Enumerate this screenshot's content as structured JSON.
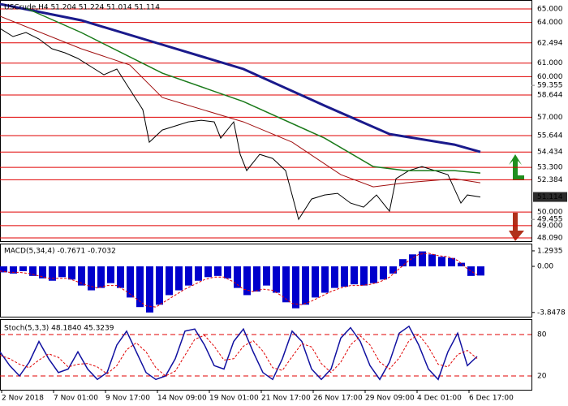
{
  "chart_data": [
    {
      "type": "line",
      "title": "USCrude,H4  51.204 51.224 51.014 51.114",
      "xlim": [
        0,
        163.75
      ],
      "ylim": [
        47.85,
        65.66
      ],
      "yticks": [
        {
          "value": 65,
          "label": "65.000"
        },
        {
          "value": 64,
          "label": "64.000"
        },
        {
          "value": 62.494,
          "label": "62.494"
        },
        {
          "value": 61,
          "label": "61.000"
        },
        {
          "value": 60,
          "label": "60.000"
        },
        {
          "value": 58.644,
          "label": "58.644"
        },
        {
          "value": 57,
          "label": "57.000"
        },
        {
          "value": 55.644,
          "label": "55.644"
        },
        {
          "value": 54.434,
          "label": "54.434"
        },
        {
          "value": 53.3,
          "label": "53.300"
        },
        {
          "value": 52.384,
          "label": "52.384"
        },
        {
          "value": 50,
          "label": "50.000"
        },
        {
          "value": 49,
          "label": "49.000"
        },
        {
          "value": 48.09,
          "label": "48.090"
        }
      ],
      "yticks_minor": [
        59.355,
        49.455
      ],
      "last": {
        "value": 51.114,
        "label": "51.114"
      },
      "level_color": "#e00000",
      "series": [
        {
          "color": "#000000",
          "width": 1,
          "x": [
            0,
            4,
            8,
            12,
            16,
            20,
            24,
            28,
            32,
            36,
            40,
            44,
            46,
            50,
            54,
            58,
            62,
            66,
            68,
            72,
            74,
            76,
            80,
            84,
            88,
            90,
            92,
            96,
            100,
            104,
            108,
            112,
            116,
            120,
            122,
            126,
            130,
            134,
            138,
            142,
            144,
            148
          ],
          "values": [
            63.56,
            62.96,
            63.26,
            62.78,
            62.06,
            61.76,
            61.34,
            60.74,
            60.14,
            60.56,
            59.06,
            57.56,
            55.16,
            56.06,
            56.36,
            56.66,
            56.78,
            56.66,
            55.46,
            56.66,
            54.26,
            53.06,
            54.26,
            53.96,
            53.06,
            51.26,
            49.46,
            50.96,
            51.26,
            51.38,
            50.66,
            50.36,
            51.26,
            50.06,
            52.46,
            53.06,
            53.36,
            53.06,
            52.76,
            50.66,
            51.26,
            51.114
          ]
        },
        {
          "color": "#1a1a8c",
          "width": 3,
          "x": [
            0,
            25,
            50,
            75,
            100,
            120,
            140,
            148
          ],
          "values": [
            65.36,
            64.16,
            62.36,
            60.56,
            57.86,
            55.76,
            54.98,
            54.44
          ]
        },
        {
          "color": "#1a7a1a",
          "width": 1.5,
          "x": [
            8,
            25,
            50,
            75,
            100,
            115,
            125,
            140,
            148
          ],
          "values": [
            65.06,
            63.26,
            60.26,
            58.16,
            55.46,
            53.36,
            53.06,
            53.06,
            52.88
          ]
        },
        {
          "color": "#a01010",
          "width": 1,
          "x": [
            0,
            25,
            40,
            50,
            75,
            90,
            105,
            115,
            125,
            140,
            148
          ],
          "values": [
            64.46,
            62.06,
            60.86,
            58.46,
            56.66,
            55.16,
            52.76,
            51.86,
            52.16,
            52.46,
            52.16
          ]
        }
      ]
    },
    {
      "type": "bar",
      "title": "MACD(5,34,4) -0.7671 -0.7032",
      "xlim": [
        0,
        163.75
      ],
      "ylim": [
        -4.2,
        1.9
      ],
      "yticks": [
        1.2935,
        {
          "value": 0,
          "label": "0.00"
        },
        -3.8478
      ],
      "series": [
        {
          "type": "bar",
          "color": "#0000cc",
          "x": [
            0,
            3,
            6,
            9,
            12,
            15,
            18,
            21,
            24,
            27,
            30,
            33,
            36,
            39,
            42,
            45,
            48,
            51,
            54,
            57,
            60,
            63,
            66,
            69,
            72,
            75,
            78,
            81,
            84,
            87,
            90,
            93,
            96,
            99,
            102,
            105,
            108,
            111,
            114,
            117,
            120,
            123,
            126,
            129,
            132,
            135,
            138,
            141,
            144,
            147
          ],
          "values": [
            -0.5,
            -0.6,
            -0.4,
            -0.8,
            -1.0,
            -1.2,
            -0.9,
            -1.1,
            -1.6,
            -2.0,
            -1.8,
            -1.4,
            -1.8,
            -2.6,
            -3.4,
            -3.85,
            -3.2,
            -2.4,
            -2.0,
            -1.6,
            -1.2,
            -0.9,
            -0.8,
            -1.0,
            -1.8,
            -2.4,
            -2.1,
            -1.6,
            -2.2,
            -3.0,
            -3.5,
            -3.2,
            -2.6,
            -2.2,
            -1.8,
            -1.7,
            -1.5,
            -1.6,
            -1.4,
            -1.1,
            -0.6,
            0.6,
            1.0,
            1.25,
            1.0,
            0.8,
            0.7,
            0.3,
            -0.8,
            -0.7671
          ]
        },
        {
          "type": "line",
          "color": "#e00000",
          "dashed": true,
          "x": [
            0,
            3,
            6,
            9,
            12,
            15,
            18,
            21,
            24,
            27,
            30,
            33,
            36,
            39,
            42,
            45,
            48,
            51,
            54,
            57,
            60,
            63,
            66,
            69,
            72,
            75,
            78,
            81,
            84,
            87,
            90,
            93,
            96,
            99,
            102,
            105,
            108,
            111,
            114,
            117,
            120,
            123,
            126,
            129,
            132,
            135,
            138,
            141,
            144,
            147
          ],
          "values": [
            -0.4,
            -0.5,
            -0.5,
            -0.6,
            -0.8,
            -1.0,
            -1.0,
            -1.0,
            -1.3,
            -1.6,
            -1.8,
            -1.6,
            -1.6,
            -2.1,
            -2.7,
            -3.3,
            -3.4,
            -2.9,
            -2.4,
            -1.9,
            -1.5,
            -1.1,
            -0.9,
            -0.9,
            -1.3,
            -1.9,
            -2.1,
            -1.9,
            -2.0,
            -2.5,
            -3.1,
            -3.2,
            -2.9,
            -2.5,
            -2.1,
            -1.8,
            -1.6,
            -1.6,
            -1.5,
            -1.3,
            -0.9,
            -0.2,
            0.5,
            1.0,
            1.1,
            0.9,
            0.8,
            0.5,
            -0.2,
            -0.7032
          ]
        }
      ]
    },
    {
      "type": "line",
      "title": "Stoch(5,3,3) 48.1840 45.3239",
      "xlim": [
        0,
        163.75
      ],
      "ylim": [
        0,
        100
      ],
      "yticks": [
        80,
        20
      ],
      "level_color": "#e00000",
      "dashed_levels": true,
      "xticks": [
        {
          "value": 0,
          "label": "2 Nov 2018"
        },
        {
          "value": 16,
          "label": "7 Nov 01:00"
        },
        {
          "value": 32,
          "label": "9 Nov 17:00"
        },
        {
          "value": 48,
          "label": "14 Nov 09:00"
        },
        {
          "value": 64,
          "label": "19 Nov 01:00"
        },
        {
          "value": 80,
          "label": "21 Nov 17:00"
        },
        {
          "value": 96,
          "label": "26 Nov 17:00"
        },
        {
          "value": 112,
          "label": "29 Nov 09:00"
        },
        {
          "value": 128,
          "label": "4 Dec 01:00"
        },
        {
          "value": 144,
          "label": "6 Dec 17:00"
        }
      ],
      "series": [
        {
          "color": "#1010a0",
          "width": 1.5,
          "x": [
            0,
            3,
            6,
            9,
            12,
            15,
            18,
            21,
            24,
            27,
            30,
            33,
            36,
            39,
            42,
            45,
            48,
            51,
            54,
            57,
            60,
            63,
            66,
            69,
            72,
            75,
            78,
            81,
            84,
            87,
            90,
            93,
            96,
            99,
            102,
            105,
            108,
            111,
            114,
            117,
            120,
            123,
            126,
            129,
            132,
            135,
            138,
            141,
            144,
            147
          ],
          "values": [
            55,
            35,
            20,
            40,
            70,
            45,
            25,
            30,
            55,
            30,
            15,
            25,
            65,
            85,
            55,
            25,
            15,
            20,
            45,
            85,
            88,
            65,
            35,
            30,
            70,
            88,
            55,
            25,
            15,
            45,
            85,
            70,
            30,
            15,
            30,
            75,
            90,
            70,
            35,
            15,
            40,
            82,
            92,
            65,
            30,
            15,
            55,
            82,
            35,
            48.184
          ]
        },
        {
          "color": "#e00000",
          "dashed": true,
          "width": 1,
          "x": [
            0,
            3,
            6,
            9,
            12,
            15,
            18,
            21,
            24,
            27,
            30,
            33,
            36,
            39,
            42,
            45,
            48,
            51,
            54,
            57,
            60,
            63,
            66,
            69,
            72,
            75,
            78,
            81,
            84,
            87,
            90,
            93,
            96,
            99,
            102,
            105,
            108,
            111,
            114,
            117,
            120,
            123,
            126,
            129,
            132,
            135,
            138,
            141,
            144,
            147
          ],
          "values": [
            50,
            45,
            37,
            32,
            43,
            52,
            47,
            33,
            37,
            38,
            33,
            23,
            35,
            58,
            68,
            55,
            32,
            20,
            27,
            50,
            73,
            79,
            63,
            43,
            45,
            63,
            71,
            56,
            32,
            28,
            48,
            67,
            62,
            38,
            25,
            40,
            65,
            78,
            65,
            40,
            30,
            46,
            71,
            80,
            62,
            37,
            33,
            51,
            57,
            45.3239
          ]
        }
      ]
    }
  ]
}
